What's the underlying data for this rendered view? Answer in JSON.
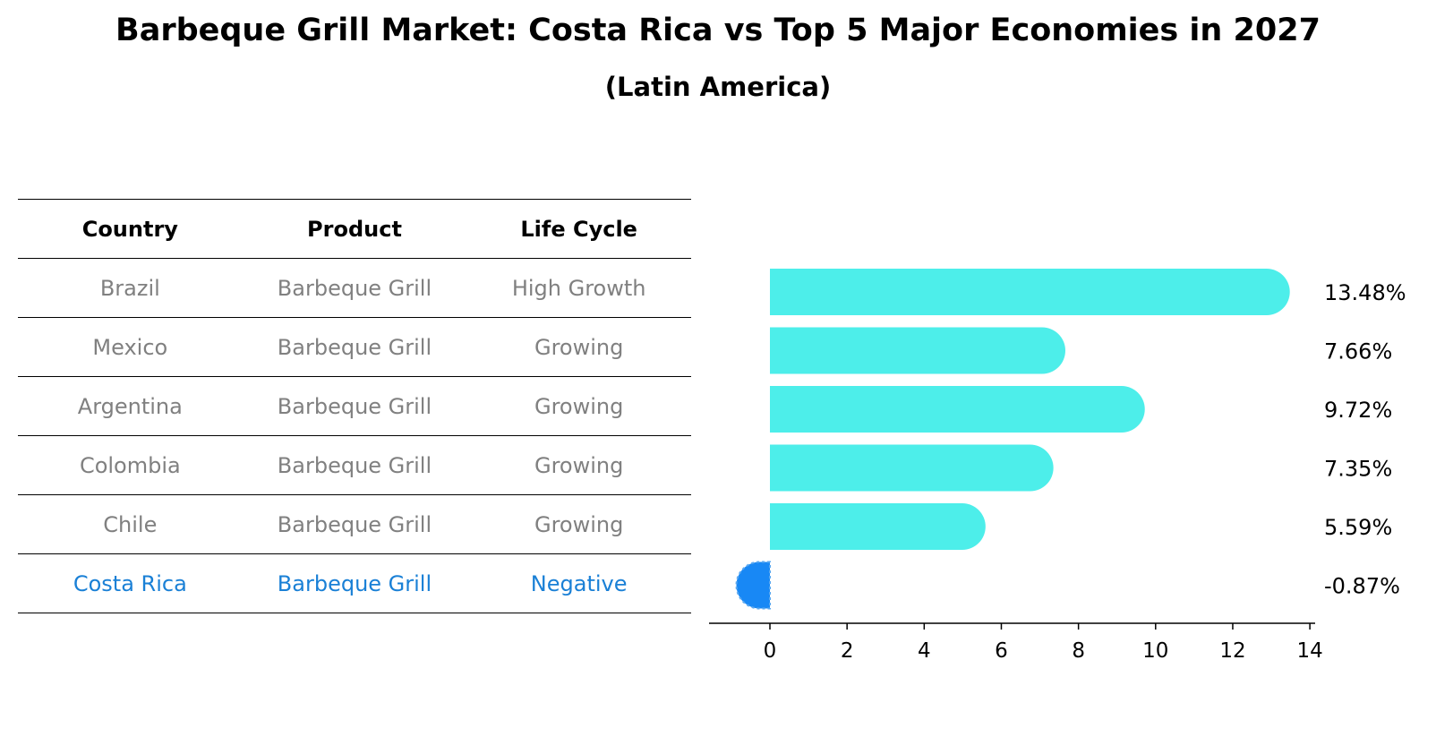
{
  "chart_data": {
    "type": "bar",
    "orientation": "horizontal",
    "title": "Barbeque Grill Market: Costa Rica vs Top 5 Major Economies in 2027",
    "subtitle": "(Latin America)",
    "categories": [
      "Brazil",
      "Mexico",
      "Argentina",
      "Colombia",
      "Chile",
      "Costa Rica"
    ],
    "values": [
      13.48,
      7.66,
      9.72,
      7.35,
      5.59,
      -0.87
    ],
    "value_labels": [
      "13.48%",
      "7.66%",
      "9.72%",
      "7.35%",
      "5.59%",
      "-0.87%"
    ],
    "xlim": [
      -1.6,
      14.2
    ],
    "xticks": [
      0,
      2,
      4,
      6,
      8,
      10,
      12,
      14
    ],
    "xtick_labels": [
      "0",
      "2",
      "4",
      "6",
      "8",
      "10",
      "12",
      "14"
    ],
    "grid": false,
    "colors": {
      "default": "#4deeea",
      "highlight": "#1888f5"
    },
    "highlight_index": 5
  },
  "table": {
    "headers": [
      "Country",
      "Product",
      "Life Cycle"
    ],
    "rows": [
      [
        "Brazil",
        "Barbeque Grill",
        "High Growth"
      ],
      [
        "Mexico",
        "Barbeque Grill",
        "Growing"
      ],
      [
        "Argentina",
        "Barbeque Grill",
        "Growing"
      ],
      [
        "Colombia",
        "Barbeque Grill",
        "Growing"
      ],
      [
        "Chile",
        "Barbeque Grill",
        "Growing"
      ],
      [
        "Costa Rica",
        "Barbeque Grill",
        "Negative"
      ]
    ],
    "highlight_color": "#1a80d6",
    "text_color": "#808080"
  }
}
